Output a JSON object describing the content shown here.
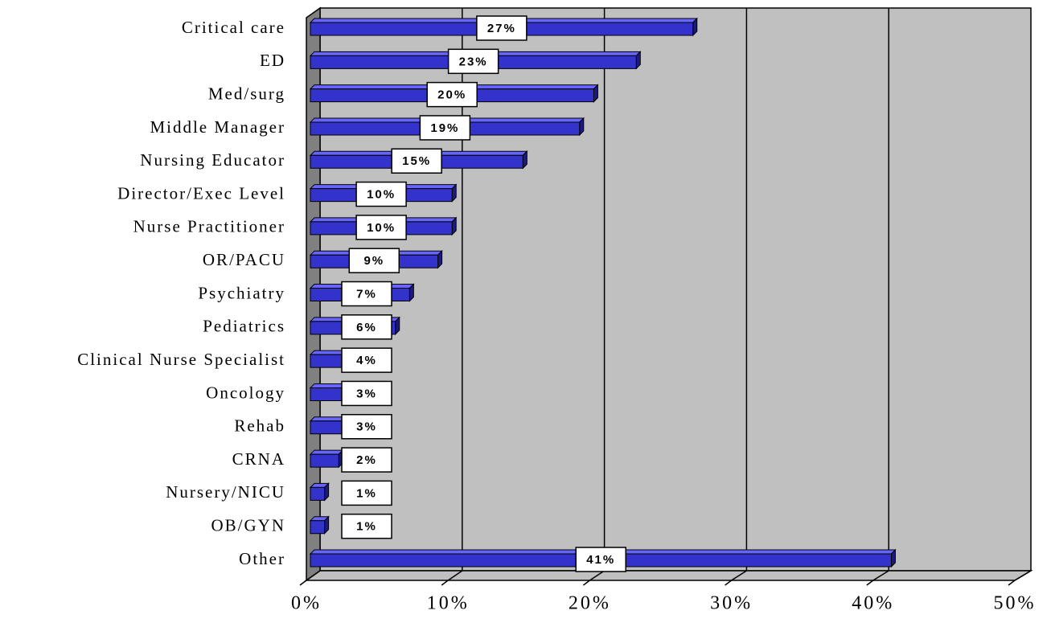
{
  "chart_data": {
    "type": "bar",
    "orientation": "horizontal",
    "categories": [
      "Critical care",
      "ED",
      "Med/surg",
      "Middle Manager",
      "Nursing Educator",
      "Director/Exec Level",
      "Nurse Practitioner",
      "OR/PACU",
      "Psychiatry",
      "Pediatrics",
      "Clinical Nurse Specialist",
      "Oncology",
      "Rehab",
      "CRNA",
      "Nursery/NICU",
      "OB/GYN",
      "Other"
    ],
    "values": [
      27,
      23,
      20,
      19,
      15,
      10,
      10,
      9,
      7,
      6,
      4,
      3,
      3,
      2,
      1,
      1,
      41
    ],
    "value_labels": [
      "27%",
      "23%",
      "20%",
      "19%",
      "15%",
      "10%",
      "10%",
      "9%",
      "7%",
      "6%",
      "4%",
      "3%",
      "3%",
      "2%",
      "1%",
      "1%",
      "41%"
    ],
    "color": "#3333cc",
    "xlim": [
      0,
      50
    ],
    "xticks": [
      {
        "value": 0,
        "label": "0%"
      },
      {
        "value": 10,
        "label": "10%"
      },
      {
        "value": 20,
        "label": "20%"
      },
      {
        "value": 30,
        "label": "30%"
      },
      {
        "value": 40,
        "label": "40%"
      },
      {
        "value": 50,
        "label": "50%"
      }
    ],
    "grid": true
  }
}
